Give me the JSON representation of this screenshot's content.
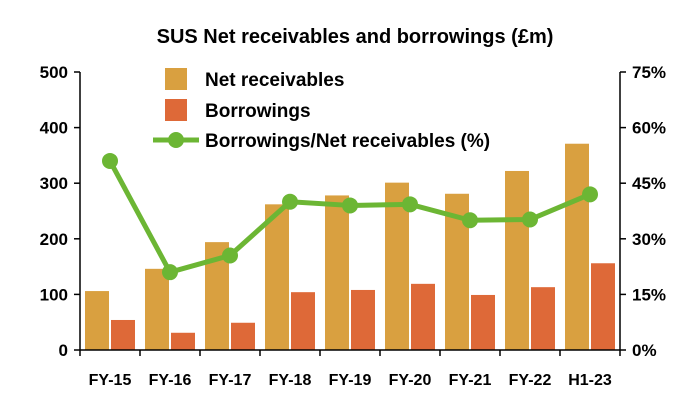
{
  "chart_data": {
    "type": "bar",
    "title": "SUS Net receivables and borrowings (£m)",
    "categories": [
      "FY-15",
      "FY-16",
      "FY-17",
      "FY-18",
      "FY-19",
      "FY-20",
      "FY-21",
      "FY-22",
      "H1-23"
    ],
    "series": [
      {
        "name": "Net receivables",
        "type": "bar",
        "axis": "left",
        "color": "#D9A040",
        "values": [
          106,
          146,
          194,
          262,
          278,
          301,
          281,
          322,
          371
        ]
      },
      {
        "name": "Borrowings",
        "type": "bar",
        "axis": "left",
        "color": "#DE6938",
        "values": [
          54,
          31,
          49,
          104,
          108,
          119,
          99,
          113,
          156
        ]
      },
      {
        "name": "Borrowings/Net receivables (%)",
        "type": "line",
        "axis": "right",
        "color": "#6CB634",
        "values": [
          51,
          21,
          25.5,
          40,
          39,
          39.3,
          35,
          35.2,
          42
        ]
      }
    ],
    "y_left": {
      "ticks": [
        "0",
        "100",
        "200",
        "300",
        "400",
        "500"
      ],
      "ylim": [
        0,
        500
      ]
    },
    "y_right": {
      "ticks": [
        "0%",
        "15%",
        "30%",
        "45%",
        "60%",
        "75%"
      ],
      "ylim": [
        0,
        75
      ]
    },
    "grid": false,
    "legend": "top-center"
  }
}
